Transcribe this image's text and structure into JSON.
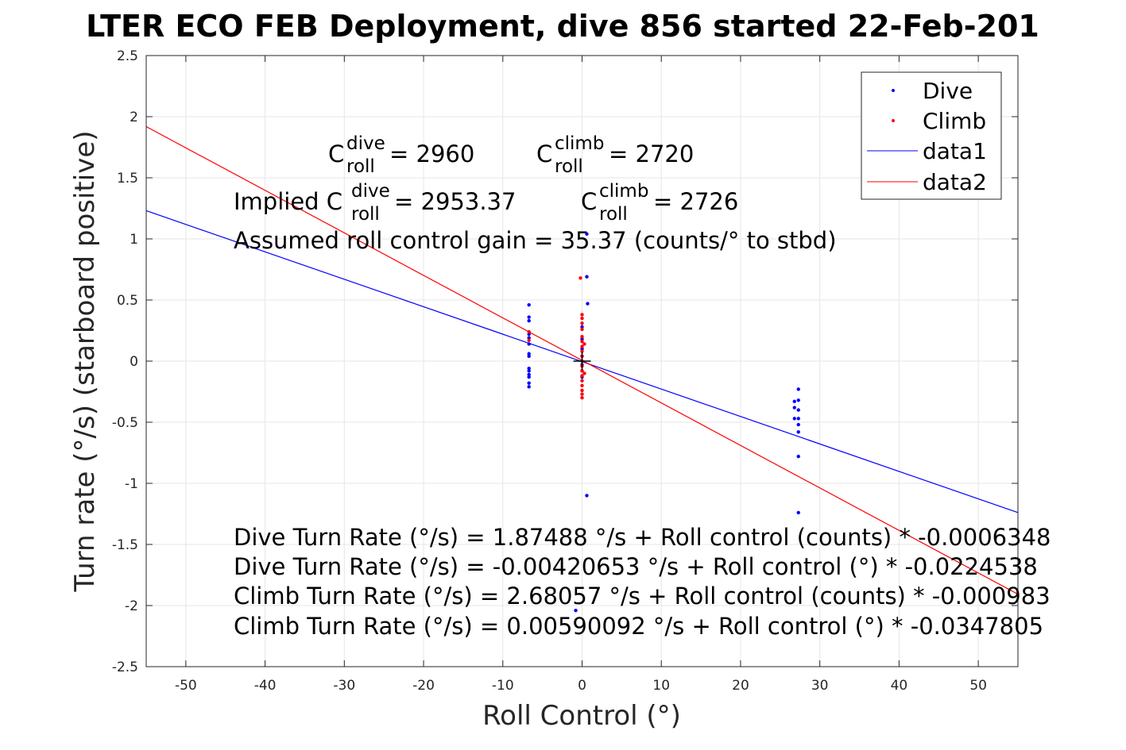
{
  "chart_data": {
    "type": "scatter",
    "title": "LTER ECO FEB Deployment, dive 856 started 22-Feb-201",
    "xlabel": "Roll Control (°)",
    "ylabel": "Turn rate (°/s) (starboard positive)",
    "xlim": [
      -55,
      55
    ],
    "ylim": [
      -2.5,
      2.5
    ],
    "xticks": [
      -50,
      -40,
      -30,
      -20,
      -10,
      0,
      10,
      20,
      30,
      40,
      50
    ],
    "yticks": [
      -2.5,
      -2,
      -1.5,
      -1,
      -0.5,
      0,
      0.5,
      1,
      1.5,
      2,
      2.5
    ],
    "grid": true,
    "legend_position": "top-right",
    "series": [
      {
        "name": "Dive",
        "kind": "points",
        "color": "#0000ff",
        "points": [
          [
            -6.7,
            0.46
          ],
          [
            -6.7,
            0.36
          ],
          [
            -6.7,
            0.33
          ],
          [
            -6.7,
            0.22
          ],
          [
            -6.7,
            0.19
          ],
          [
            -6.7,
            0.14
          ],
          [
            -6.7,
            0.06
          ],
          [
            -6.7,
            0.04
          ],
          [
            -6.7,
            -0.06
          ],
          [
            -6.7,
            -0.08
          ],
          [
            -6.7,
            -0.11
          ],
          [
            -6.7,
            -0.13
          ],
          [
            -6.7,
            -0.18
          ],
          [
            -6.7,
            -0.21
          ],
          [
            0.0,
            0.28
          ],
          [
            0.0,
            0.18
          ],
          [
            0.0,
            0.1
          ],
          [
            0.0,
            0.04
          ],
          [
            0.0,
            0.0
          ],
          [
            0.0,
            -0.03
          ],
          [
            0.0,
            -0.08
          ],
          [
            0.0,
            -0.13
          ],
          [
            0.6,
            1.04
          ],
          [
            0.6,
            0.69
          ],
          [
            0.7,
            0.47
          ],
          [
            0.6,
            -1.1
          ],
          [
            -0.8,
            -2.04
          ],
          [
            26.8,
            -0.33
          ],
          [
            26.8,
            -0.38
          ],
          [
            26.8,
            -0.47
          ],
          [
            27.3,
            -0.23
          ],
          [
            27.3,
            -0.32
          ],
          [
            27.3,
            -0.4
          ],
          [
            27.3,
            -0.47
          ],
          [
            27.3,
            -0.52
          ],
          [
            27.3,
            -0.58
          ],
          [
            27.3,
            -0.78
          ],
          [
            27.3,
            -1.24
          ]
        ]
      },
      {
        "name": "Climb",
        "kind": "points",
        "color": "#ff0000",
        "points": [
          [
            -6.7,
            0.24
          ],
          [
            -6.7,
            0.17
          ],
          [
            -0.2,
            0.68
          ],
          [
            0.0,
            0.38
          ],
          [
            0.0,
            0.35
          ],
          [
            0.0,
            0.31
          ],
          [
            0.0,
            0.26
          ],
          [
            0.0,
            0.2
          ],
          [
            0.0,
            0.16
          ],
          [
            0.0,
            0.12
          ],
          [
            0.0,
            0.08
          ],
          [
            0.0,
            0.04
          ],
          [
            0.0,
            0.0
          ],
          [
            0.0,
            -0.04
          ],
          [
            0.0,
            -0.08
          ],
          [
            0.0,
            -0.12
          ],
          [
            0.0,
            -0.16
          ],
          [
            0.0,
            -0.2
          ],
          [
            0.0,
            -0.24
          ],
          [
            0.0,
            -0.27
          ],
          [
            0.0,
            -0.3
          ],
          [
            0.3,
            0.14
          ],
          [
            0.3,
            -0.1
          ]
        ]
      },
      {
        "name": "data1",
        "kind": "line",
        "color": "#0000ff",
        "intercept": -0.00420653,
        "slope": -0.0224538
      },
      {
        "name": "data2",
        "kind": "line",
        "color": "#ff0000",
        "intercept": 0.00590092,
        "slope": -0.0347805
      }
    ],
    "center_marker": [
      0,
      0
    ],
    "annotations": {
      "c_roll_dive_label": "C",
      "c_roll_dive_sup": "dive",
      "c_roll_dive_sub": "roll",
      "c_roll_dive_value": " = 2960",
      "c_roll_climb_label": "C",
      "c_roll_climb_sup": "climb",
      "c_roll_climb_sub": "roll",
      "c_roll_climb_value": " = 2720",
      "implied_prefix": "Implied C",
      "implied_dive_sup": "dive",
      "implied_dive_sub": "roll",
      "implied_dive_value": " = 2953.37",
      "implied_climb_label": "C",
      "implied_climb_sup": "climb",
      "implied_climb_sub": "roll",
      "implied_climb_value": " = 2726",
      "gain_text": "Assumed roll control gain = 35.37 (counts/° to stbd)",
      "equations": [
        "Dive Turn Rate (°/s) = 1.87488 °/s + Roll control (counts) * -0.0006348",
        "Dive Turn Rate (°/s) = -0.00420653 °/s + Roll control (°) * -0.0224538",
        "Climb Turn Rate (°/s) = 2.68057 °/s + Roll control (counts) * -0.000983",
        "Climb Turn Rate (°/s) = 0.00590092 °/s + Roll control (°) * -0.0347805"
      ]
    }
  }
}
